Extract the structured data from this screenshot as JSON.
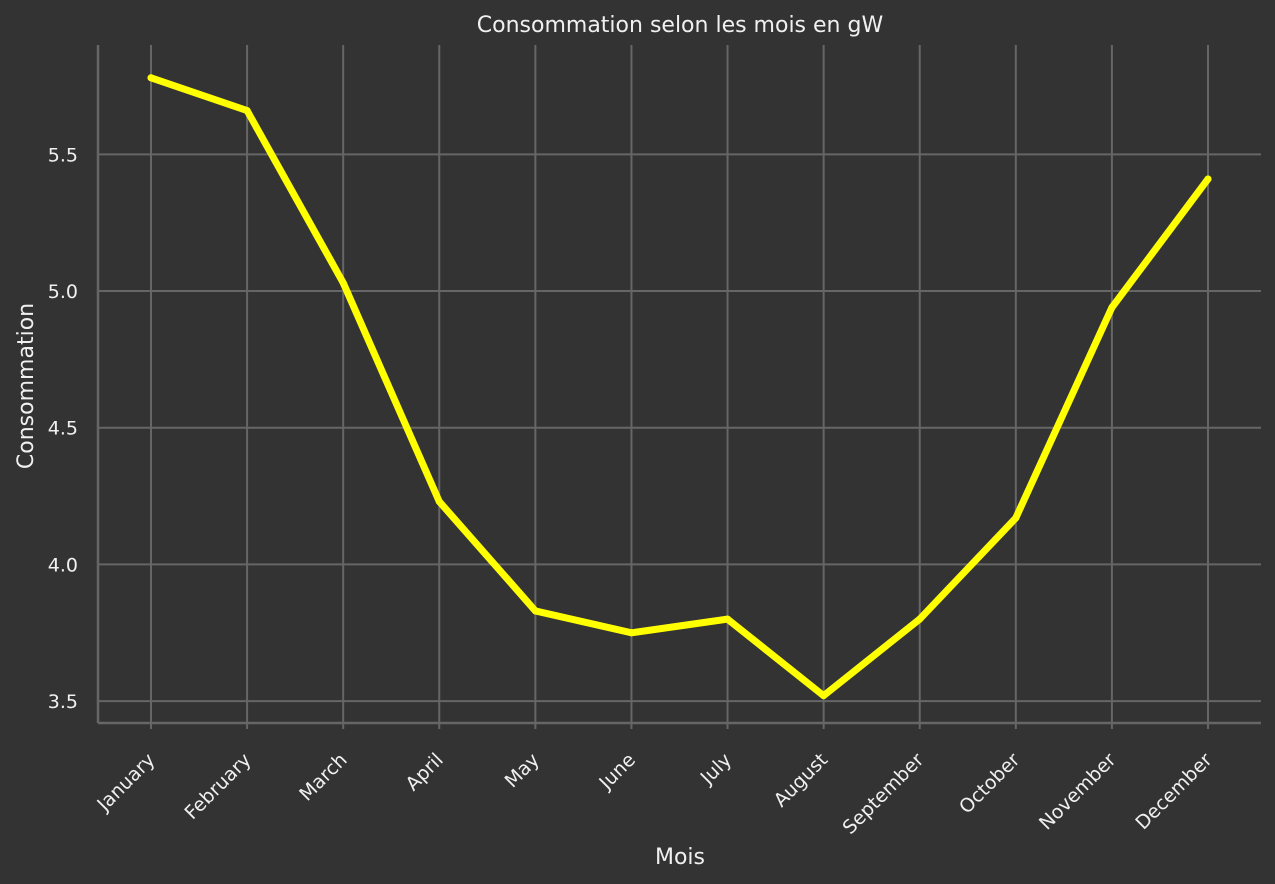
{
  "chart_data": {
    "type": "line",
    "title": "Consommation selon les mois en gW",
    "xlabel": "Mois",
    "ylabel": "Consommation",
    "categories": [
      "January",
      "February",
      "March",
      "April",
      "May",
      "June",
      "July",
      "August",
      "September",
      "October",
      "November",
      "December"
    ],
    "series": [
      {
        "color": "#ffff00",
        "values": [
          5.78,
          5.66,
          5.03,
          4.23,
          3.83,
          3.75,
          3.8,
          3.52,
          3.8,
          4.17,
          4.94,
          5.41
        ]
      }
    ],
    "yticks": [
      "3.5",
      "4.0",
      "4.5",
      "5.0",
      "5.5"
    ],
    "ylim": [
      3.42,
      5.9
    ],
    "grid": true,
    "background": "#333333",
    "grid_color": "#666666",
    "text_color": "#f0f0f0"
  }
}
